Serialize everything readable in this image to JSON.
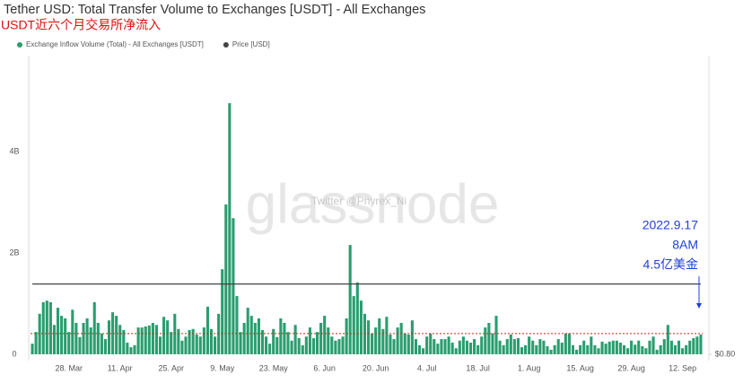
{
  "chart_data": {
    "type": "bar",
    "title": "Tether USD: Total Transfer Volume to Exchanges [USDT] - All Exchanges",
    "subtitle": "USDT近六个月交易所净流入",
    "watermark": "glassnode",
    "watermark_credit": "Twitter @Phyrex_Ni",
    "annotation": [
      "2022.9.17",
      "8AM",
      "4.5亿美金"
    ],
    "annotation_color": "#1f3fd8",
    "categories": [
      null,
      null,
      null,
      null,
      null,
      null,
      null,
      null,
      null,
      null,
      "28. Mar",
      null,
      null,
      null,
      null,
      null,
      null,
      null,
      null,
      null,
      null,
      null,
      null,
      null,
      "11. Apr",
      null,
      null,
      null,
      null,
      null,
      null,
      null,
      null,
      null,
      null,
      null,
      null,
      null,
      "25. Apr",
      null,
      null,
      null,
      null,
      null,
      null,
      null,
      null,
      null,
      null,
      null,
      null,
      null,
      "9. May",
      null,
      null,
      null,
      null,
      null,
      null,
      null,
      null,
      null,
      null,
      null,
      null,
      null,
      "23. May",
      null,
      null,
      null,
      null,
      null,
      null,
      null,
      null,
      null,
      null,
      null,
      null,
      null,
      "6. Jun",
      null,
      null,
      null,
      null,
      null,
      null,
      null,
      null,
      null,
      null,
      null,
      null,
      null,
      "20. Jun",
      null,
      null,
      null,
      null,
      null,
      null,
      null,
      null,
      null,
      null,
      null,
      null,
      null,
      "4. Jul",
      null,
      null,
      null,
      null,
      null,
      null,
      null,
      null,
      null,
      null,
      null,
      null,
      null,
      "18. Jul",
      null,
      null,
      null,
      null,
      null,
      null,
      null,
      null,
      null,
      null,
      null,
      null,
      null,
      "1. Aug",
      null,
      null,
      null,
      null,
      null,
      null,
      null,
      null,
      null,
      null,
      null,
      null,
      null,
      "15. Aug",
      null,
      null,
      null,
      null,
      null,
      null,
      null,
      null,
      null,
      null,
      null,
      null,
      null,
      "29. Aug",
      null,
      null,
      null,
      null,
      null,
      null,
      null,
      null,
      null,
      null,
      null,
      null,
      null,
      "12. Sep",
      null,
      null,
      null,
      null,
      null
    ],
    "series": [
      {
        "name": "Exchange Inflow Volume (Total) - All Exchanges [USDT]",
        "color": "#2a9d6f",
        "values": [
          0.21,
          0.44,
          0.8,
          1.03,
          1.06,
          1.03,
          0.58,
          0.92,
          0.76,
          0.71,
          0.44,
          0.88,
          0.62,
          0.34,
          0.62,
          0.71,
          0.53,
          1.03,
          0.62,
          0.41,
          0.3,
          0.67,
          0.83,
          0.76,
          0.58,
          0.48,
          0.23,
          0.14,
          0.18,
          0.53,
          0.53,
          0.55,
          0.57,
          0.62,
          0.58,
          0.35,
          0.74,
          0.67,
          0.44,
          0.8,
          0.5,
          0.27,
          0.35,
          0.48,
          0.5,
          0.39,
          0.35,
          0.53,
          0.94,
          0.5,
          0.35,
          0.8,
          1.68,
          2.96,
          4.96,
          2.69,
          1.15,
          0.44,
          0.62,
          0.92,
          0.76,
          0.62,
          0.71,
          0.48,
          0.35,
          0.21,
          0.5,
          0.34,
          0.71,
          0.62,
          0.44,
          0.27,
          0.58,
          0.32,
          0.18,
          0.35,
          0.53,
          0.32,
          0.44,
          0.62,
          0.76,
          0.53,
          0.35,
          0.27,
          0.3,
          0.35,
          0.71,
          2.16,
          1.15,
          1.42,
          1.06,
          0.8,
          0.67,
          0.41,
          0.53,
          0.71,
          0.5,
          0.74,
          0.39,
          0.3,
          0.53,
          0.62,
          0.41,
          0.39,
          0.67,
          0.3,
          0.18,
          0.12,
          0.35,
          0.41,
          0.3,
          0.21,
          0.3,
          0.3,
          0.35,
          0.23,
          0.12,
          0.27,
          0.35,
          0.27,
          0.23,
          0.3,
          0.18,
          0.35,
          0.53,
          0.62,
          0.41,
          0.76,
          0.27,
          0.18,
          0.3,
          0.39,
          0.3,
          0.32,
          0.14,
          0.18,
          0.35,
          0.27,
          0.18,
          0.3,
          0.27,
          0.16,
          0.09,
          0.18,
          0.3,
          0.23,
          0.41,
          0.41,
          0.18,
          0.09,
          0.18,
          0.27,
          0.18,
          0.35,
          0.18,
          0.12,
          0.25,
          0.21,
          0.25,
          0.27,
          0.27,
          0.23,
          0.18,
          0.12,
          0.27,
          0.19,
          0.27,
          0.16,
          0.12,
          0.27,
          0.35,
          0.09,
          0.18,
          0.3,
          0.58,
          0.27,
          0.18,
          0.27,
          0.12,
          0.18,
          0.27,
          0.32,
          0.35,
          0.39
        ]
      },
      {
        "name": "Price [USD]",
        "color": "#444444",
        "type": "line",
        "axis": "y2",
        "values": [
          1,
          1,
          1,
          1,
          1,
          1,
          1,
          1,
          1,
          1,
          1,
          1,
          1,
          1,
          1,
          1,
          1,
          1,
          1,
          1,
          1,
          1,
          1,
          1,
          1,
          1,
          1,
          1,
          1,
          1,
          1,
          1,
          1,
          1,
          1,
          1,
          1,
          1,
          1,
          1,
          1,
          1,
          1,
          1,
          1,
          1,
          1,
          1,
          1,
          1,
          1,
          1,
          1,
          1,
          1,
          1,
          1,
          1,
          1,
          1,
          1,
          1,
          1,
          1,
          1,
          1,
          1,
          1,
          1,
          1,
          1,
          1,
          1,
          1,
          1,
          1,
          1,
          1,
          1,
          1,
          1,
          1,
          1,
          1,
          1,
          1,
          1,
          1,
          1,
          1,
          1,
          1,
          1,
          1,
          1,
          1,
          1,
          1,
          1,
          1,
          1,
          1,
          1,
          1,
          1,
          1,
          1,
          1,
          1,
          1,
          1,
          1,
          1,
          1,
          1,
          1,
          1,
          1,
          1,
          1,
          1,
          1,
          1,
          1,
          1,
          1,
          1,
          1,
          1,
          1,
          1,
          1,
          1,
          1,
          1,
          1,
          1,
          1,
          1,
          1,
          1,
          1,
          1,
          1,
          1,
          1,
          1,
          1,
          1,
          1,
          1,
          1,
          1,
          1,
          1,
          1,
          1,
          1,
          1,
          1,
          1,
          1,
          1,
          1,
          1,
          1,
          1,
          1,
          1,
          1,
          1,
          1,
          1,
          1,
          1,
          1,
          1,
          1,
          1,
          1,
          1,
          1,
          1,
          1
        ]
      }
    ],
    "reference_line": {
      "value": 0.41,
      "color": "#e02020"
    },
    "ylim": [
      0,
      5.9
    ],
    "yticks": [
      0,
      {
        "value": 2,
        "label": "2B"
      },
      {
        "value": 4,
        "label": "4B"
      }
    ],
    "y2lim": [
      0.8,
      1.65
    ],
    "y2ticks": [
      {
        "value": 0.8,
        "label": "$0.80"
      }
    ],
    "grid": false
  }
}
